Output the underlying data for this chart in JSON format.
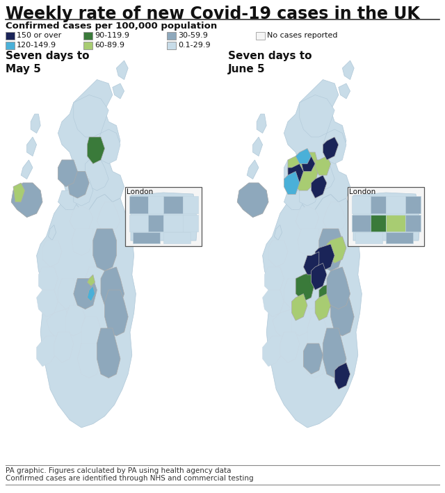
{
  "title": "Weekly rate of new Covid-19 cases in the UK",
  "subtitle": "Confirmed cases per 100,000 population",
  "left_map_label": "Seven days to\nMay 5",
  "right_map_label": "Seven days to\nJune 5",
  "footer_line1": "PA graphic. Figures calculated by PA using health agency data",
  "footer_line2": "Confirmed cases are identified through NHS and commercial testing",
  "london_label": "London",
  "legend_items": [
    {
      "label": "150 or over",
      "color": "#1a2458"
    },
    {
      "label": "90-119.9",
      "color": "#3a7a3a"
    },
    {
      "label": "30-59.9",
      "color": "#8ea8bc"
    },
    {
      "label": "No cases reported",
      "color": "#f5f5f5",
      "edgecolor": "#aaaaaa"
    },
    {
      "label": "120-149.9",
      "color": "#4ab0d8"
    },
    {
      "label": "60-89.9",
      "color": "#a8cc72"
    },
    {
      "label": "0.1-29.9",
      "color": "#c8dce8"
    }
  ],
  "c_dark": "#1a2458",
  "c_green": "#3a7a3a",
  "c_med_light": "#8ea8bc",
  "c_no_cases": "#f5f5f5",
  "c_blue": "#4ab0d8",
  "c_light_green": "#a8cc72",
  "c_very_light": "#c8dce8",
  "c_border": "#ffffff",
  "c_outer_border": "#aaaaaa",
  "background": "#ffffff"
}
